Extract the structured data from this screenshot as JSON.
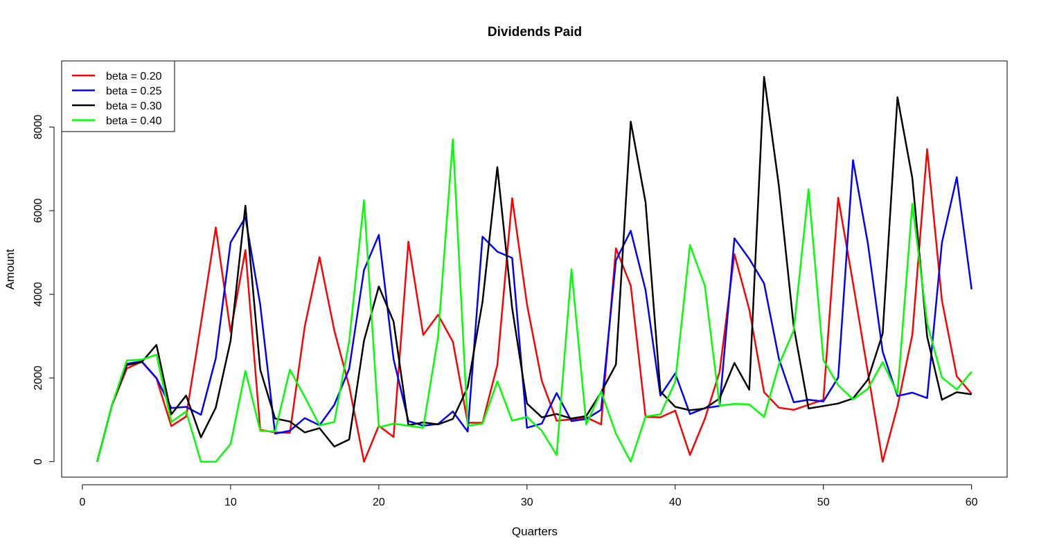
{
  "chart_data": {
    "type": "line",
    "title": "Dividends Paid",
    "xlabel": "Quarters",
    "ylabel": "Amount",
    "xlim": [
      -1.4,
      62.4
    ],
    "ylim": [
      -370,
      9580
    ],
    "x_ticks": [
      0,
      10,
      20,
      30,
      40,
      50,
      60
    ],
    "y_ticks": [
      0,
      2000,
      4000,
      6000,
      8000
    ],
    "grid": false,
    "legend_position": "top-left",
    "x": [
      1,
      2,
      3,
      4,
      5,
      6,
      7,
      8,
      9,
      10,
      11,
      12,
      13,
      14,
      15,
      16,
      17,
      18,
      19,
      20,
      21,
      22,
      23,
      24,
      25,
      26,
      27,
      28,
      29,
      30,
      31,
      32,
      33,
      34,
      35,
      36,
      37,
      38,
      39,
      40,
      41,
      42,
      43,
      44,
      45,
      46,
      47,
      48,
      49,
      50,
      51,
      52,
      53,
      54,
      55,
      56,
      57,
      58,
      59,
      60
    ],
    "series": [
      {
        "name": "beta = 0.20",
        "color": "#ff0000",
        "values": [
          0,
          1350,
          2230,
          2390,
          1990,
          850,
          1080,
          3300,
          5600,
          3100,
          5060,
          760,
          700,
          690,
          3230,
          4890,
          3130,
          1800,
          0,
          860,
          590,
          5260,
          3030,
          3510,
          2870,
          930,
          930,
          2310,
          6300,
          3760,
          1930,
          980,
          1010,
          1060,
          890,
          5100,
          4210,
          1070,
          1060,
          1220,
          160,
          1020,
          2150,
          4960,
          3640,
          1660,
          1290,
          1240,
          1360,
          1480,
          6310,
          4270,
          2140,
          0,
          1320,
          3030,
          7470,
          3850,
          2040,
          1620
        ]
      },
      {
        "name": "beta = 0.25",
        "color": "#0000ff",
        "values": [
          0,
          1350,
          2340,
          2400,
          2000,
          1280,
          1310,
          1120,
          2470,
          5240,
          5840,
          3750,
          670,
          740,
          1040,
          870,
          1360,
          2220,
          4580,
          5420,
          2450,
          970,
          860,
          900,
          1200,
          720,
          5380,
          5020,
          4870,
          810,
          910,
          1640,
          970,
          1020,
          1240,
          4810,
          5520,
          4100,
          1580,
          2110,
          1140,
          1280,
          1330,
          5340,
          4850,
          4260,
          2460,
          1420,
          1480,
          1440,
          2010,
          7210,
          5220,
          2630,
          1570,
          1650,
          1520,
          5240,
          6800,
          4120
        ]
      },
      {
        "name": "beta = 0.30",
        "color": "#000000",
        "values": [
          0,
          1350,
          2310,
          2380,
          2790,
          1130,
          1580,
          580,
          1290,
          2890,
          6120,
          2200,
          1030,
          960,
          700,
          800,
          360,
          530,
          2890,
          4190,
          3350,
          870,
          940,
          890,
          1020,
          1780,
          3820,
          7040,
          3670,
          1390,
          1060,
          1140,
          1030,
          1090,
          1660,
          2320,
          8130,
          6200,
          1680,
          1310,
          1230,
          1270,
          1510,
          2360,
          1720,
          9200,
          6590,
          3230,
          1270,
          1330,
          1390,
          1510,
          1960,
          3060,
          8710,
          6780,
          2990,
          1480,
          1660,
          1610
        ]
      },
      {
        "name": "beta = 0.40",
        "color": "#00ff00",
        "values": [
          0,
          1350,
          2420,
          2440,
          2560,
          950,
          1200,
          0,
          0,
          420,
          2170,
          740,
          720,
          2200,
          1550,
          870,
          950,
          2880,
          6250,
          820,
          910,
          860,
          810,
          2980,
          7710,
          860,
          910,
          1920,
          980,
          1070,
          740,
          160,
          4600,
          890,
          1680,
          670,
          0,
          1080,
          1130,
          1910,
          5180,
          4210,
          1340,
          1380,
          1370,
          1070,
          2320,
          3140,
          6510,
          2430,
          1830,
          1490,
          1740,
          2380,
          1630,
          6170,
          3310,
          2010,
          1730,
          2150
        ]
      }
    ]
  }
}
